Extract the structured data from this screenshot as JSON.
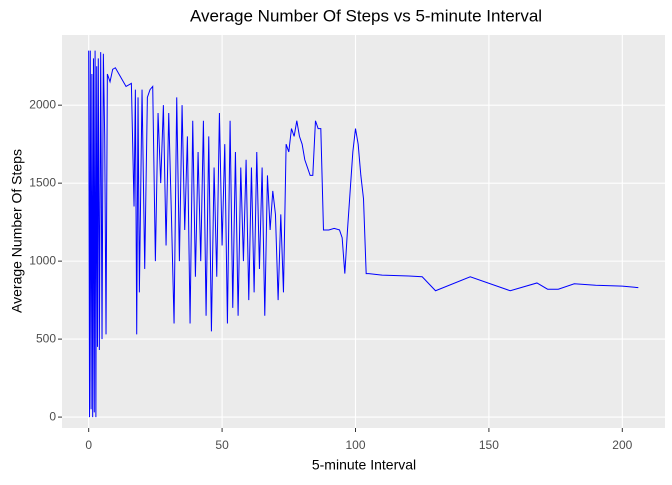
{
  "chart_data": {
    "type": "line",
    "title": "Average Number Of Steps vs 5-minute Interval",
    "x_label": "5-minute Interval",
    "y_label": "Average Number Of Steps",
    "x": [
      0,
      0.3,
      0.6,
      0.9,
      1.2,
      1.5,
      1.8,
      2.1,
      2.4,
      2.7,
      3,
      3.3,
      3.6,
      4,
      4.5,
      5,
      5.5,
      6,
      6.5,
      7,
      8,
      9,
      10,
      12,
      14,
      16,
      17,
      17.5,
      18,
      18.5,
      19,
      20,
      21,
      22,
      23,
      24,
      25,
      26,
      27,
      28,
      29,
      30,
      31,
      32,
      33,
      34,
      35,
      36,
      37,
      38,
      39,
      40,
      41,
      42,
      43,
      44,
      45,
      46,
      47,
      48,
      49,
      50,
      51,
      52,
      53,
      54,
      55,
      56,
      57,
      58,
      59,
      60,
      61,
      62,
      63,
      64,
      65,
      66,
      67,
      68,
      69,
      70,
      71,
      72,
      73,
      74,
      75,
      76,
      77,
      78,
      79,
      80,
      81,
      82,
      83,
      84,
      85,
      86,
      87,
      88,
      90,
      92,
      94,
      95,
      96,
      97,
      99,
      100,
      101,
      102,
      103,
      104,
      105,
      110,
      120,
      125,
      130,
      143,
      158,
      168,
      172,
      176,
      182,
      190,
      200,
      206
    ],
    "series": [
      {
        "name": "Average Number Of Steps",
        "color": "#0000ff",
        "values": [
          2350,
          0,
          2350,
          50,
          2200,
          0,
          2300,
          30,
          2350,
          0,
          2250,
          450,
          2300,
          430,
          2340,
          500,
          2330,
          1800,
          530,
          2200,
          2150,
          2230,
          2240,
          2180,
          2120,
          2140,
          1350,
          2100,
          530,
          2050,
          800,
          2100,
          950,
          2050,
          2100,
          2120,
          1000,
          1950,
          1500,
          2000,
          1100,
          1950,
          1300,
          600,
          2050,
          1000,
          2000,
          1200,
          1800,
          600,
          1900,
          900,
          1700,
          1000,
          1900,
          650,
          1800,
          550,
          1600,
          900,
          1950,
          1100,
          1750,
          600,
          1900,
          700,
          1700,
          650,
          1600,
          1000,
          1650,
          750,
          1600,
          800,
          1700,
          950,
          1600,
          650,
          1550,
          1200,
          1450,
          1300,
          750,
          1300,
          800,
          1750,
          1700,
          1850,
          1800,
          1900,
          1800,
          1750,
          1650,
          1600,
          1550,
          1550,
          1900,
          1850,
          1850,
          1200,
          1200,
          1210,
          1200,
          1150,
          920,
          1200,
          1700,
          1850,
          1750,
          1550,
          1400,
          920,
          920,
          910,
          905,
          900,
          810,
          900,
          810,
          860,
          820,
          820,
          855,
          845,
          840,
          830
        ]
      }
    ],
    "xlim": [
      -10,
      216
    ],
    "xticks": [
      0,
      50,
      100,
      150,
      200
    ],
    "ylim": [
      -70,
      2450
    ],
    "yticks": [
      0,
      500,
      1000,
      1500,
      2000
    ],
    "grid": true
  }
}
